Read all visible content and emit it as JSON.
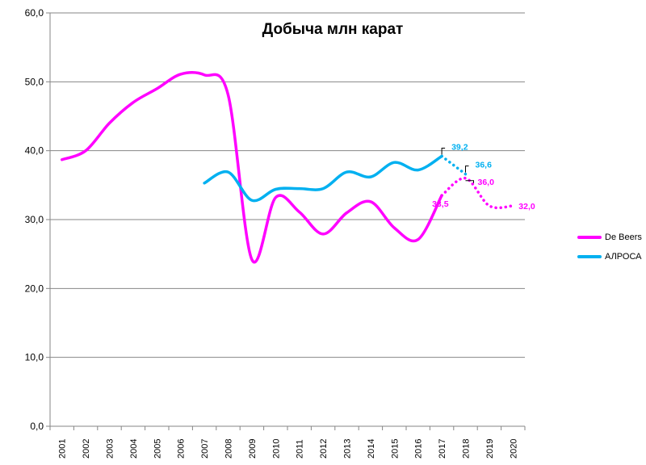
{
  "chart_data": {
    "type": "line",
    "title": "Добыча млн карат",
    "xlabel": "",
    "ylabel": "",
    "categories": [
      "2001",
      "2002",
      "2003",
      "2004",
      "2005",
      "2006",
      "2007",
      "2008",
      "2009",
      "2010",
      "2011",
      "2012",
      "2013",
      "2014",
      "2015",
      "2016",
      "2017",
      "2018",
      "2019",
      "2020"
    ],
    "ylim": [
      0,
      60
    ],
    "yticks": [
      "0,0",
      "10,0",
      "20,0",
      "30,0",
      "40,0",
      "50,0",
      "60,0"
    ],
    "grid": "horizontal",
    "legend_position": "right",
    "series": [
      {
        "name": "De Beers",
        "color": "#ff00ff",
        "actual": [
          38.7,
          40.0,
          44.0,
          47.0,
          49.0,
          51.1,
          51.0,
          48.1,
          24.2,
          33.2,
          31.1,
          27.9,
          31.0,
          32.6,
          28.8,
          27.1,
          33.5
        ],
        "forecast_start_index": 16,
        "forecast": [
          33.5,
          36.0,
          32.0,
          32.0
        ],
        "labels": [
          {
            "index": 16,
            "text": "33,5"
          },
          {
            "index": 17,
            "text": "36,0"
          },
          {
            "index": 19,
            "text": "32,0"
          }
        ]
      },
      {
        "name": "АЛРОСА",
        "color": "#00b0f0",
        "actual_start_index": 6,
        "actual": [
          35.3,
          36.9,
          32.8,
          34.4,
          34.5,
          34.5,
          36.9,
          36.2,
          38.3,
          37.2,
          39.2
        ],
        "forecast_start_index": 16,
        "forecast": [
          39.2,
          36.6
        ],
        "labels": [
          {
            "index": 16,
            "text": "39,2"
          },
          {
            "index": 17,
            "text": "36,6"
          }
        ]
      }
    ]
  }
}
